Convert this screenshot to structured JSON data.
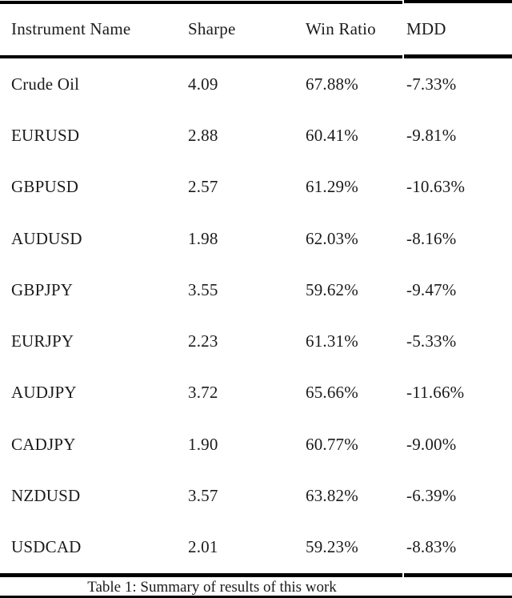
{
  "document": {
    "caption": "Table 1: Summary of results of this work"
  },
  "table": {
    "columns": [
      "Instrument Name",
      "Sharpe",
      "Win Ratio",
      "MDD"
    ],
    "rows": [
      [
        "Crude Oil",
        "4.09",
        "67.88%",
        "-7.33%"
      ],
      [
        "EURUSD",
        "2.88",
        "60.41%",
        "-9.81%"
      ],
      [
        "GBPUSD",
        "2.57",
        "61.29%",
        "-10.63%"
      ],
      [
        "AUDUSD",
        "1.98",
        "62.03%",
        "-8.16%"
      ],
      [
        "GBPJPY",
        "3.55",
        "59.62%",
        "-9.47%"
      ],
      [
        "EURJPY",
        "2.23",
        "61.31%",
        "-5.33%"
      ],
      [
        "AUDJPY",
        "3.72",
        "65.66%",
        "-11.66%"
      ],
      [
        "CADJPY",
        "1.90",
        "60.77%",
        "-9.00%"
      ],
      [
        "NZDUSD",
        "3.57",
        "63.82%",
        "-6.39%"
      ],
      [
        "USDCAD",
        "2.01",
        "59.23%",
        "-8.83%"
      ]
    ]
  },
  "colors": {
    "background": "#ffffff",
    "text": "#1b1b1b",
    "rule": "#000000"
  }
}
